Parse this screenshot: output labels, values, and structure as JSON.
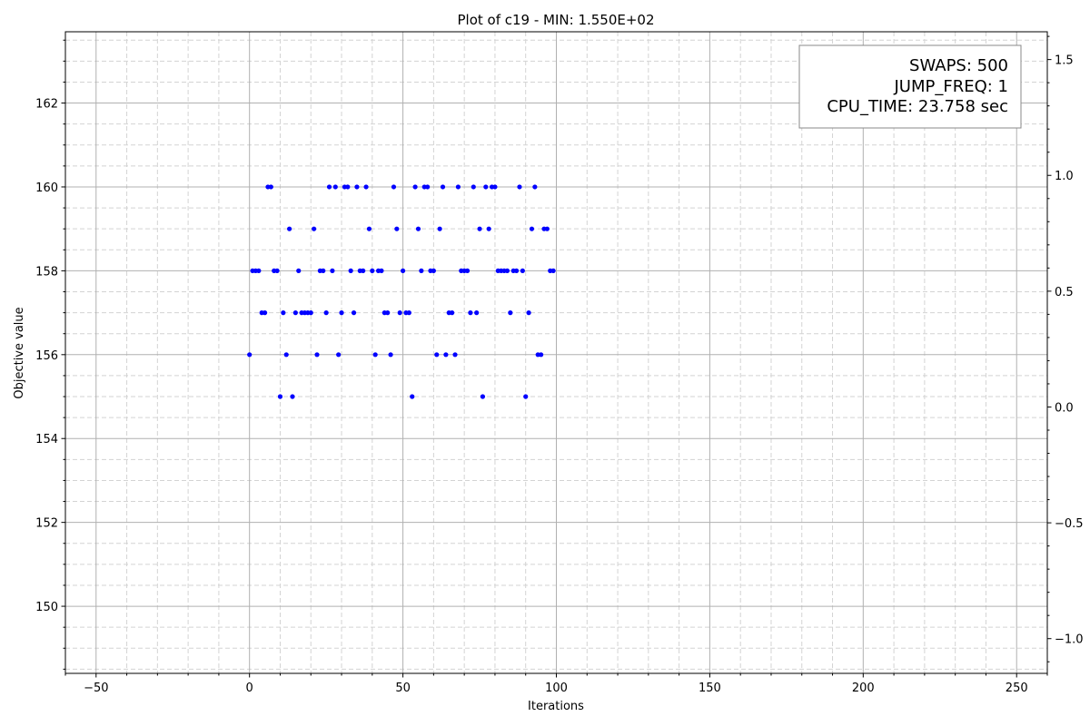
{
  "chart_data": {
    "type": "scatter",
    "title": "Plot of c19 - MIN: 1.550E+02",
    "xlabel": "Iterations",
    "ylabel": "Objective value",
    "xlim": [
      -60,
      260
    ],
    "ylim": [
      148.4,
      163.7
    ],
    "right_ylim": [
      -1.15,
      1.62
    ],
    "x_major_ticks": [
      -50,
      0,
      50,
      100,
      150,
      200,
      250
    ],
    "y_major_ticks": [
      150,
      152,
      154,
      156,
      158,
      160,
      162
    ],
    "right_y_ticks": [
      -1.0,
      -0.5,
      0.0,
      0.5,
      1.0,
      1.5
    ],
    "x_tick_labels": [
      "−50",
      "0",
      "50",
      "100",
      "150",
      "200",
      "250"
    ],
    "y_tick_labels": [
      "150",
      "152",
      "154",
      "156",
      "158",
      "160",
      "162"
    ],
    "right_y_tick_labels": [
      "−1.0",
      "−0.5",
      "0.0",
      "0.5",
      "1.0",
      "1.5"
    ],
    "grid": true,
    "point_color": "#0000ff",
    "legend_position": "top-right",
    "legend_lines": [
      "SWAPS: 500",
      "JUMP_FREQ: 1",
      "CPU_TIME: 23.758 sec"
    ],
    "points": {
      "x": [
        0,
        1,
        2,
        3,
        4,
        5,
        6,
        7,
        8,
        9,
        10,
        11,
        12,
        13,
        14,
        15,
        16,
        17,
        18,
        19,
        20,
        21,
        22,
        23,
        24,
        25,
        26,
        27,
        28,
        29,
        30,
        31,
        32,
        33,
        34,
        35,
        36,
        37,
        38,
        39,
        40,
        41,
        42,
        43,
        44,
        45,
        46,
        47,
        48,
        49,
        50,
        51,
        52,
        53,
        54,
        55,
        56,
        57,
        58,
        59,
        60,
        61,
        62,
        63,
        64,
        65,
        66,
        67,
        68,
        69,
        70,
        71,
        72,
        73,
        74,
        75,
        76,
        77,
        78,
        79,
        80,
        81,
        82,
        83,
        84,
        85,
        86,
        87,
        88,
        89,
        90,
        91,
        92,
        93,
        94,
        95,
        96,
        97,
        98,
        99
      ],
      "y": [
        156,
        158,
        158,
        158,
        157,
        157,
        160,
        160,
        158,
        158,
        155,
        157,
        156,
        159,
        155,
        157,
        158,
        157,
        157,
        157,
        157,
        159,
        156,
        158,
        158,
        157,
        160,
        158,
        160,
        156,
        157,
        160,
        160,
        158,
        157,
        160,
        158,
        158,
        160,
        159,
        158,
        156,
        158,
        158,
        157,
        157,
        156,
        160,
        159,
        157,
        158,
        157,
        157,
        155,
        160,
        159,
        158,
        160,
        160,
        158,
        158,
        156,
        159,
        160,
        156,
        157,
        157,
        156,
        160,
        158,
        158,
        158,
        157,
        160,
        157,
        159,
        155,
        160,
        159,
        160,
        160,
        158,
        158,
        158,
        158,
        157,
        158,
        158,
        160,
        158,
        155,
        157,
        159,
        160,
        156,
        156,
        159,
        159,
        158,
        158
      ]
    }
  }
}
